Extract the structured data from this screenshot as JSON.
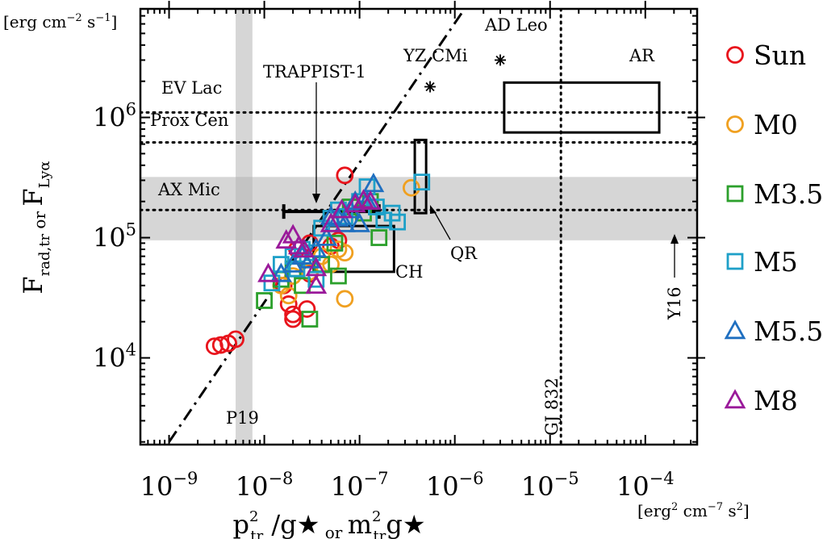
{
  "chart_data": {
    "type": "scatter",
    "title": "",
    "xlabel": "p²_tr /g★ or m²_tr g★",
    "xlabel_parts": [
      "p",
      "2",
      "tr",
      "/g★",
      "or",
      "m",
      "2",
      "tr",
      "g★"
    ],
    "ylabel": "F_rad,tr or F_Lyα",
    "ylabel_parts": [
      "F",
      "rad,tr",
      "or",
      "F",
      "Lyα"
    ],
    "x_unit": "[erg² cm⁻⁷ s²]",
    "x_unit_parts": [
      "[erg",
      "2",
      " cm",
      "−7",
      " s",
      "2",
      "]"
    ],
    "y_unit": "[erg cm⁻² s⁻¹]",
    "y_unit_parts": [
      "[erg cm",
      "−2",
      " s",
      "−1",
      "]"
    ],
    "xscale": "log",
    "yscale": "log",
    "xlim": [
      5e-10,
      0.00035
    ],
    "ylim": [
      1900,
      8000000
    ],
    "xticks": [
      {
        "value": 1e-09,
        "base": "10",
        "exp": "-9"
      },
      {
        "value": 1e-08,
        "base": "10",
        "exp": "-8"
      },
      {
        "value": 1e-07,
        "base": "10",
        "exp": "-7"
      },
      {
        "value": 1e-06,
        "base": "10",
        "exp": "-6"
      },
      {
        "value": 1e-05,
        "base": "10",
        "exp": "-5"
      },
      {
        "value": 0.0001,
        "base": "10",
        "exp": "-4"
      }
    ],
    "yticks": [
      {
        "value": 10000,
        "base": "10",
        "exp": "4"
      },
      {
        "value": 100000,
        "base": "10",
        "exp": "5"
      },
      {
        "value": 1000000,
        "base": "10",
        "exp": "6"
      }
    ],
    "legend": [
      {
        "label": "Sun",
        "marker": "circle",
        "color": "#e8141c"
      },
      {
        "label": "M0",
        "marker": "circle",
        "color": "#f0a020"
      },
      {
        "label": "M3.5",
        "marker": "square",
        "color": "#2ca02c"
      },
      {
        "label": "M5",
        "marker": "square",
        "color": "#1ea0c8"
      },
      {
        "label": "M5.5",
        "marker": "triangle",
        "color": "#1f6fc0"
      },
      {
        "label": "M8",
        "marker": "triangle",
        "color": "#9a1a9a"
      }
    ],
    "legend_position": "right",
    "series": [
      {
        "name": "Sun",
        "points": [
          [
            3e-09,
            12500
          ],
          [
            3.5e-09,
            12800
          ],
          [
            4.2e-09,
            13200
          ],
          [
            5e-09,
            14300
          ],
          [
            1.6e-08,
            40000
          ],
          [
            1.8e-08,
            28000
          ],
          [
            2e-08,
            23000
          ],
          [
            2e-08,
            21000
          ],
          [
            2.8e-08,
            25500
          ],
          [
            3e-08,
            50000
          ],
          [
            5e-08,
            85000
          ],
          [
            6e-08,
            95000
          ],
          [
            7e-08,
            330000
          ],
          [
            3e-08,
            90000
          ],
          [
            2.2e-08,
            80000
          ]
        ]
      },
      {
        "name": "M0",
        "points": [
          [
            1.5e-08,
            40000
          ],
          [
            2e-08,
            48000
          ],
          [
            3e-08,
            52000
          ],
          [
            4e-08,
            70000
          ],
          [
            5e-08,
            60000
          ],
          [
            6e-08,
            80000
          ],
          [
            7e-08,
            75000
          ],
          [
            7e-08,
            31000
          ],
          [
            3.5e-07,
            260000
          ],
          [
            1.8e-08,
            33000
          ]
        ]
      },
      {
        "name": "M3.5",
        "points": [
          [
            1e-08,
            30000
          ],
          [
            1.5e-08,
            45000
          ],
          [
            2e-08,
            55000
          ],
          [
            2.5e-08,
            40000
          ],
          [
            3e-08,
            21000
          ],
          [
            4e-08,
            60000
          ],
          [
            5.5e-08,
            90000
          ],
          [
            6e-08,
            48000
          ],
          [
            8e-08,
            180000
          ],
          [
            1.1e-07,
            160000
          ],
          [
            1.3e-07,
            200000
          ],
          [
            1.6e-07,
            100000
          ]
        ]
      },
      {
        "name": "M5",
        "points": [
          [
            1.2e-08,
            42000
          ],
          [
            1.5e-08,
            60000
          ],
          [
            2e-08,
            70000
          ],
          [
            2.5e-08,
            80000
          ],
          [
            3.2e-08,
            75000
          ],
          [
            4e-08,
            120000
          ],
          [
            5e-08,
            145000
          ],
          [
            6e-08,
            170000
          ],
          [
            7e-08,
            150000
          ],
          [
            1e-07,
            200000
          ],
          [
            1.2e-07,
            265000
          ],
          [
            1.5e-07,
            180000
          ],
          [
            1.8e-07,
            140000
          ],
          [
            2.2e-07,
            160000
          ],
          [
            2.5e-07,
            135000
          ],
          [
            4.5e-07,
            290000
          ],
          [
            3.5e-08,
            45000
          ],
          [
            2.2e-08,
            55000
          ]
        ]
      },
      {
        "name": "M5.5",
        "points": [
          [
            1.5e-08,
            50000
          ],
          [
            2e-08,
            60000
          ],
          [
            2.5e-08,
            70000
          ],
          [
            3e-08,
            65000
          ],
          [
            3.5e-08,
            80000
          ],
          [
            4.5e-08,
            100000
          ],
          [
            5e-08,
            150000
          ],
          [
            6e-08,
            145000
          ],
          [
            7e-08,
            130000
          ],
          [
            8e-08,
            170000
          ],
          [
            1e-07,
            130000
          ],
          [
            1.2e-07,
            200000
          ],
          [
            1.4e-07,
            280000
          ],
          [
            9e-08,
            200000
          ]
        ]
      },
      {
        "name": "M8",
        "points": [
          [
            1.1e-08,
            50000
          ],
          [
            1.7e-08,
            95000
          ],
          [
            2e-08,
            105000
          ],
          [
            2.3e-08,
            85000
          ],
          [
            2.6e-08,
            80000
          ],
          [
            3.5e-08,
            40000
          ],
          [
            3.5e-08,
            56000
          ],
          [
            5e-08,
            130000
          ],
          [
            6.5e-08,
            170000
          ],
          [
            9e-08,
            190000
          ],
          [
            1.1e-07,
            205000
          ],
          [
            1.3e-07,
            200000
          ]
        ]
      }
    ],
    "dashdot_line": {
      "from": [
        1e-09,
        2000
      ],
      "to": [
        1.4e-06,
        9000000
      ]
    },
    "horizontal_lines": [
      {
        "label": "EV Lac",
        "y": 1100000
      },
      {
        "label": "Prox Cen",
        "y": 620000
      },
      {
        "label": "AX Mic",
        "y": 170000
      }
    ],
    "vertical_lines": [
      {
        "label": "GJ 832",
        "x": 1.3e-05
      }
    ],
    "bands": [
      {
        "label": "P19",
        "orientation": "vertical",
        "range": [
          5e-09,
          7.5e-09
        ]
      },
      {
        "label": "",
        "orientation": "horizontal",
        "range": [
          95000,
          320000
        ]
      }
    ],
    "stars": [
      {
        "label": "YZ CMi",
        "x": 5.5e-07,
        "y": 1800000
      },
      {
        "label": "AD Leo",
        "x": 3e-06,
        "y": 3000000
      }
    ],
    "regions": [
      {
        "label": "AR",
        "x": [
          3.3e-06,
          0.00014
        ],
        "y": [
          750000,
          1950000
        ]
      },
      {
        "label": "QR",
        "x": [
          3.8e-07,
          5e-07
        ],
        "y": [
          160000,
          650000
        ]
      },
      {
        "label": "CH",
        "x": [
          3.3e-08,
          2.3e-07
        ],
        "y": [
          52000,
          125000
        ]
      }
    ],
    "errorbars": [
      {
        "label": "TRAPPIST-1",
        "x": [
          1.6e-08,
          1.6e-07
        ],
        "y": 165000
      }
    ],
    "annotations": [
      {
        "text": "TRAPPIST-1"
      },
      {
        "text": "QR"
      },
      {
        "text": "CH"
      },
      {
        "text": "Y16"
      },
      {
        "text": "AR"
      },
      {
        "text": "P19"
      }
    ]
  }
}
